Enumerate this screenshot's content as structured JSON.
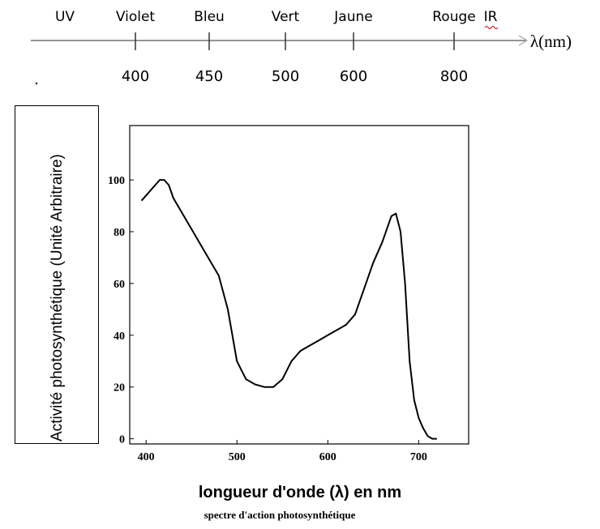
{
  "spectrum": {
    "colors": [
      "UV",
      "Violet",
      "Bleu",
      "Vert",
      "Jaune",
      "Rouge",
      "IR"
    ],
    "ticks": [
      400,
      450,
      500,
      600,
      800
    ],
    "axis_label": "λ(nm)"
  },
  "chart_data": {
    "type": "line",
    "x": [
      395,
      400,
      410,
      415,
      420,
      425,
      430,
      440,
      450,
      460,
      470,
      480,
      490,
      500,
      510,
      520,
      530,
      540,
      550,
      560,
      570,
      580,
      590,
      600,
      610,
      620,
      630,
      640,
      650,
      660,
      670,
      675,
      680,
      685,
      690,
      695,
      700,
      705,
      710,
      715,
      720
    ],
    "series": [
      {
        "color": "#000000",
        "values": [
          92,
          94,
          98,
          100,
          100,
          98,
          93,
          87,
          81,
          75,
          69,
          63,
          50,
          30,
          23,
          21,
          20,
          20,
          23,
          30,
          34,
          36,
          38,
          40,
          42,
          44,
          48,
          58,
          68,
          76,
          86,
          87,
          80,
          60,
          30,
          15,
          8,
          4,
          1,
          0,
          0
        ]
      }
    ],
    "xlim": [
      382,
      755
    ],
    "ylim": [
      -2,
      121
    ],
    "xticks": [
      400,
      500,
      600,
      700
    ],
    "yticks": [
      0,
      20,
      40,
      60,
      80,
      100
    ],
    "x_label": "longueur d'onde (λ) en nm",
    "y_label": "Activité photosynthétique (Unité Arbitraire)",
    "caption": "spectre d'action photosynthétique"
  }
}
